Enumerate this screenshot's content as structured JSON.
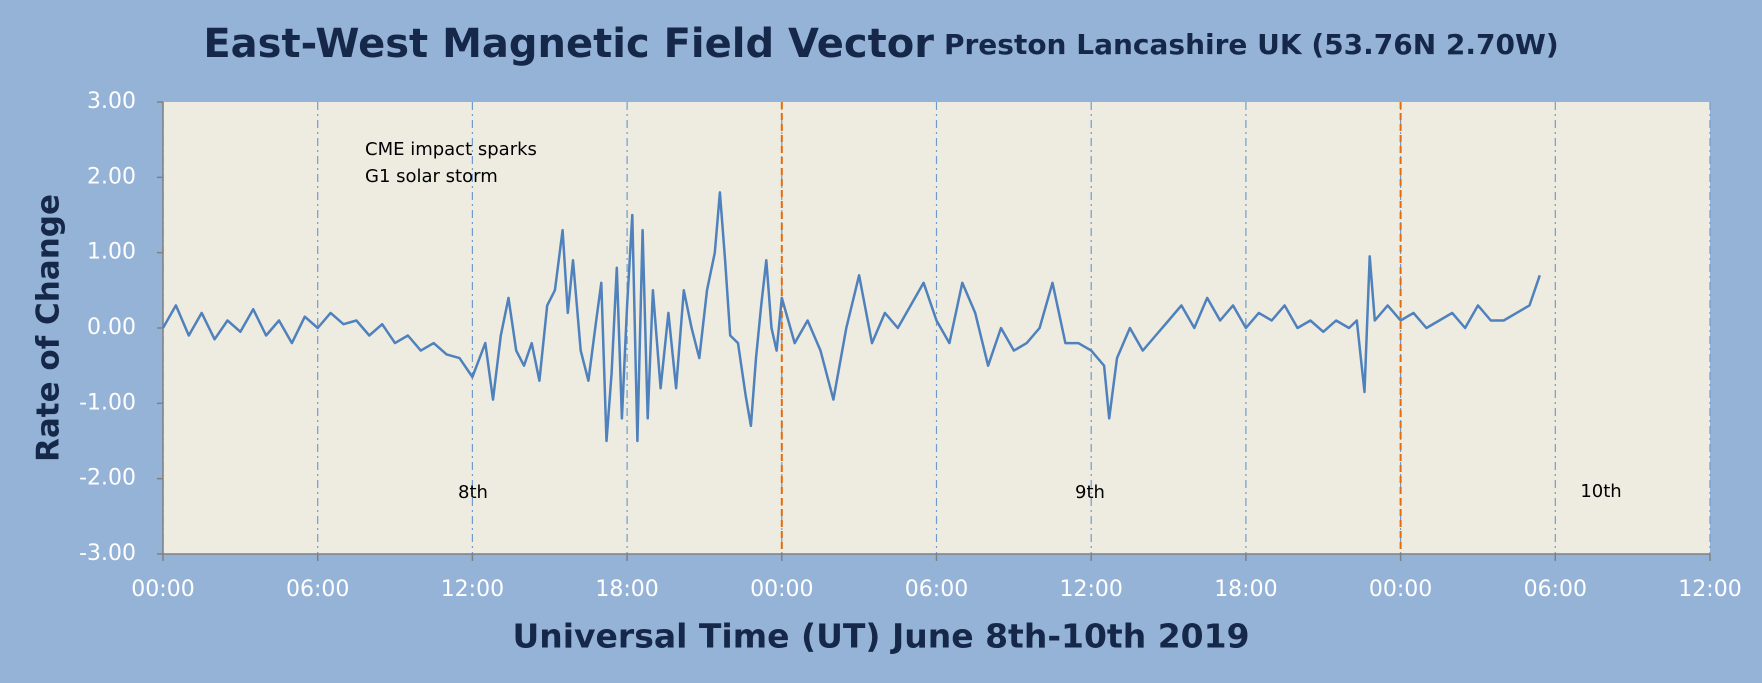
{
  "chart_data": {
    "type": "line",
    "title": "East-West Magnetic Field Vector",
    "subtitle": "Preston Lancashire UK (53.76N 2.70W)",
    "x_label": "Universal Time (UT) June 8th-10th 2019",
    "y_label": "Rate of Change",
    "annotations": [
      "CME impact sparks",
      "G1 solar storm",
      "8th",
      "9th",
      "10th"
    ],
    "color": "#4f81bd",
    "grid": true,
    "grid_color": "#6f9bd1",
    "day_boundaries": [
      24,
      48
    ],
    "day_boundary_color": "#e46c0a",
    "xlim": [
      0,
      60
    ],
    "xticks": [
      {
        "value": 0,
        "label": "00:00"
      },
      {
        "value": 6,
        "label": "06:00"
      },
      {
        "value": 12,
        "label": "12:00"
      },
      {
        "value": 18,
        "label": "18:00"
      },
      {
        "value": 24,
        "label": "00:00"
      },
      {
        "value": 30,
        "label": "06:00"
      },
      {
        "value": 36,
        "label": "12:00"
      },
      {
        "value": 42,
        "label": "18:00"
      },
      {
        "value": 48,
        "label": "00:00"
      },
      {
        "value": 54,
        "label": "06:00"
      },
      {
        "value": 60,
        "label": "12:00"
      }
    ],
    "ylim": [
      -3,
      3
    ],
    "yticks": [
      {
        "value": 3,
        "label": "3.00"
      },
      {
        "value": 2,
        "label": "2.00"
      },
      {
        "value": 1,
        "label": "1.00"
      },
      {
        "value": 0,
        "label": "0.00"
      },
      {
        "value": -1,
        "label": "-1.00"
      },
      {
        "value": -2,
        "label": "-2.00"
      },
      {
        "value": -3,
        "label": "-3.00"
      }
    ],
    "x": [
      0,
      0.5,
      1,
      1.5,
      2,
      2.5,
      3,
      3.5,
      4,
      4.5,
      5,
      5.5,
      6,
      6.5,
      7,
      7.5,
      8,
      8.5,
      9,
      9.5,
      10,
      10.5,
      11,
      11.5,
      12,
      12.5,
      12.8,
      13.1,
      13.4,
      13.7,
      14,
      14.3,
      14.6,
      14.9,
      15.2,
      15.5,
      15.7,
      15.9,
      16.2,
      16.5,
      16.8,
      17,
      17.2,
      17.4,
      17.6,
      17.8,
      18,
      18.2,
      18.4,
      18.6,
      18.8,
      19,
      19.3,
      19.6,
      19.9,
      20.2,
      20.5,
      20.8,
      21.1,
      21.4,
      21.6,
      21.8,
      22,
      22.3,
      22.6,
      22.8,
      23,
      23.2,
      23.4,
      23.6,
      23.8,
      24,
      24.5,
      25,
      25.5,
      26,
      26.5,
      27,
      27.5,
      28,
      28.5,
      29,
      29.5,
      30,
      30.5,
      31,
      31.5,
      32,
      32.5,
      33,
      33.5,
      34,
      34.5,
      35,
      35.5,
      36,
      36.5,
      36.7,
      37,
      37.5,
      38,
      38.5,
      39,
      39.5,
      40,
      40.5,
      41,
      41.5,
      42,
      42.5,
      43,
      43.5,
      44,
      44.5,
      45,
      45.5,
      46,
      46.3,
      46.6,
      46.8,
      47,
      47.5,
      48,
      48.5,
      49,
      49.5,
      50,
      50.5,
      51,
      51.5,
      52,
      52.5,
      53,
      53.4
    ],
    "values": [
      0,
      0.3,
      -0.1,
      0.2,
      -0.15,
      0.1,
      -0.05,
      0.25,
      -0.1,
      0.1,
      -0.2,
      0.15,
      0,
      0.2,
      0.05,
      0.1,
      -0.1,
      0.05,
      -0.2,
      -0.1,
      -0.3,
      -0.2,
      -0.35,
      -0.4,
      -0.65,
      -0.2,
      -0.95,
      -0.1,
      0.4,
      -0.3,
      -0.5,
      -0.2,
      -0.7,
      0.3,
      0.5,
      1.3,
      0.2,
      0.9,
      -0.3,
      -0.7,
      0.1,
      0.6,
      -1.5,
      -0.6,
      0.8,
      -1.2,
      0.3,
      1.5,
      -1.5,
      1.3,
      -1.2,
      0.5,
      -0.8,
      0.2,
      -0.8,
      0.5,
      0,
      -0.4,
      0.5,
      1,
      1.8,
      0.9,
      -0.1,
      -0.2,
      -0.9,
      -1.3,
      -0.4,
      0.3,
      0.9,
      0,
      -0.3,
      0.4,
      -0.2,
      0.1,
      -0.3,
      -0.95,
      0,
      0.7,
      -0.2,
      0.2,
      0,
      0.3,
      0.6,
      0.1,
      -0.2,
      0.6,
      0.2,
      -0.5,
      0,
      -0.3,
      -0.2,
      0,
      0.6,
      -0.2,
      -0.2,
      -0.3,
      -0.5,
      -1.2,
      -0.4,
      0,
      -0.3,
      -0.1,
      0.1,
      0.3,
      0,
      0.4,
      0.1,
      0.3,
      0,
      0.2,
      0.1,
      0.3,
      0,
      0.1,
      -0.05,
      0.1,
      0,
      0.1,
      -0.85,
      0.95,
      0.1,
      0.3,
      0.1,
      0.2,
      0,
      0.1,
      0.2,
      0,
      0.3,
      0.1,
      0.1,
      0.2,
      0.3,
      0.7
    ]
  }
}
